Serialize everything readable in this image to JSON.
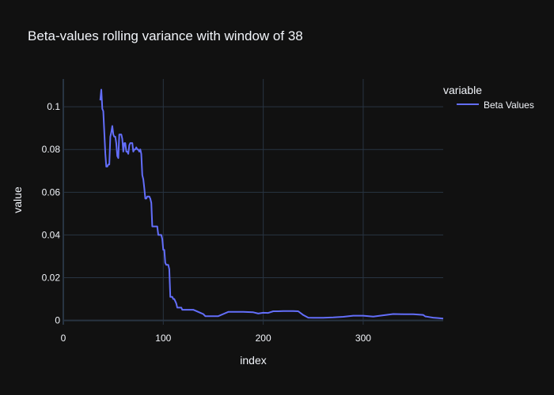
{
  "chart_data": {
    "type": "line",
    "title": "Beta-values rolling variance with window of 38",
    "xlabel": "index",
    "ylabel": "value",
    "xlim": [
      0,
      380
    ],
    "ylim": [
      -0.002,
      0.113
    ],
    "xticks": [
      0,
      100,
      200,
      300
    ],
    "yticks": [
      0,
      0.02,
      0.04,
      0.06,
      0.08,
      0.1
    ],
    "ytick_labels": [
      "0",
      "0.02",
      "0.04",
      "0.06",
      "0.08",
      "0.1"
    ],
    "grid": true,
    "legend": {
      "title": "variable",
      "position": "top-right"
    },
    "colors": {
      "background": "#111111",
      "grid": "#283442",
      "line": "#636efa",
      "text": "#f2f5fa"
    },
    "series": [
      {
        "name": "Beta Values",
        "x": [
          37,
          38,
          39,
          40,
          41,
          42,
          43,
          44,
          45,
          46,
          47,
          48,
          49,
          50,
          51,
          52,
          53,
          54,
          55,
          56,
          57,
          58,
          59,
          60,
          61,
          62,
          63,
          64,
          65,
          66,
          67,
          68,
          69,
          70,
          71,
          72,
          73,
          74,
          75,
          76,
          77,
          78,
          79,
          80,
          81,
          82,
          83,
          84,
          85,
          86,
          87,
          88,
          89,
          90,
          91,
          92,
          93,
          94,
          95,
          96,
          97,
          98,
          99,
          100,
          101,
          102,
          103,
          104,
          105,
          106,
          107,
          108,
          109,
          110,
          111,
          112,
          113,
          114,
          115,
          116,
          117,
          118,
          119,
          120,
          122,
          125,
          130,
          140,
          142,
          145,
          150,
          155,
          160,
          165,
          170,
          180,
          190,
          195,
          200,
          205,
          210,
          215,
          220,
          230,
          235,
          240,
          245,
          250,
          260,
          270,
          280,
          290,
          300,
          310,
          320,
          330,
          340,
          350,
          360,
          362,
          366,
          370,
          375,
          380
        ],
        "values": [
          0.103,
          0.108,
          0.099,
          0.098,
          0.088,
          0.078,
          0.072,
          0.072,
          0.073,
          0.073,
          0.086,
          0.088,
          0.091,
          0.087,
          0.086,
          0.086,
          0.083,
          0.077,
          0.076,
          0.087,
          0.087,
          0.087,
          0.085,
          0.079,
          0.083,
          0.083,
          0.079,
          0.079,
          0.078,
          0.082,
          0.083,
          0.083,
          0.083,
          0.079,
          0.08,
          0.08,
          0.081,
          0.08,
          0.08,
          0.079,
          0.08,
          0.078,
          0.068,
          0.066,
          0.062,
          0.057,
          0.057,
          0.058,
          0.058,
          0.058,
          0.057,
          0.055,
          0.044,
          0.044,
          0.044,
          0.044,
          0.044,
          0.044,
          0.04,
          0.04,
          0.04,
          0.04,
          0.038,
          0.033,
          0.033,
          0.027,
          0.026,
          0.026,
          0.026,
          0.024,
          0.011,
          0.011,
          0.011,
          0.01,
          0.01,
          0.009,
          0.008,
          0.006,
          0.006,
          0.006,
          0.006,
          0.006,
          0.005,
          0.005,
          0.005,
          0.005,
          0.005,
          0.003,
          0.002,
          0.002,
          0.002,
          0.002,
          0.003,
          0.004,
          0.004,
          0.004,
          0.0038,
          0.0032,
          0.0036,
          0.0035,
          0.0043,
          0.0043,
          0.0044,
          0.0044,
          0.0043,
          0.0025,
          0.0013,
          0.0012,
          0.0012,
          0.0014,
          0.0017,
          0.0022,
          0.0022,
          0.0018,
          0.0024,
          0.003,
          0.0029,
          0.0029,
          0.0026,
          0.0019,
          0.0016,
          0.0013,
          0.0011,
          0.0009
        ]
      }
    ]
  }
}
